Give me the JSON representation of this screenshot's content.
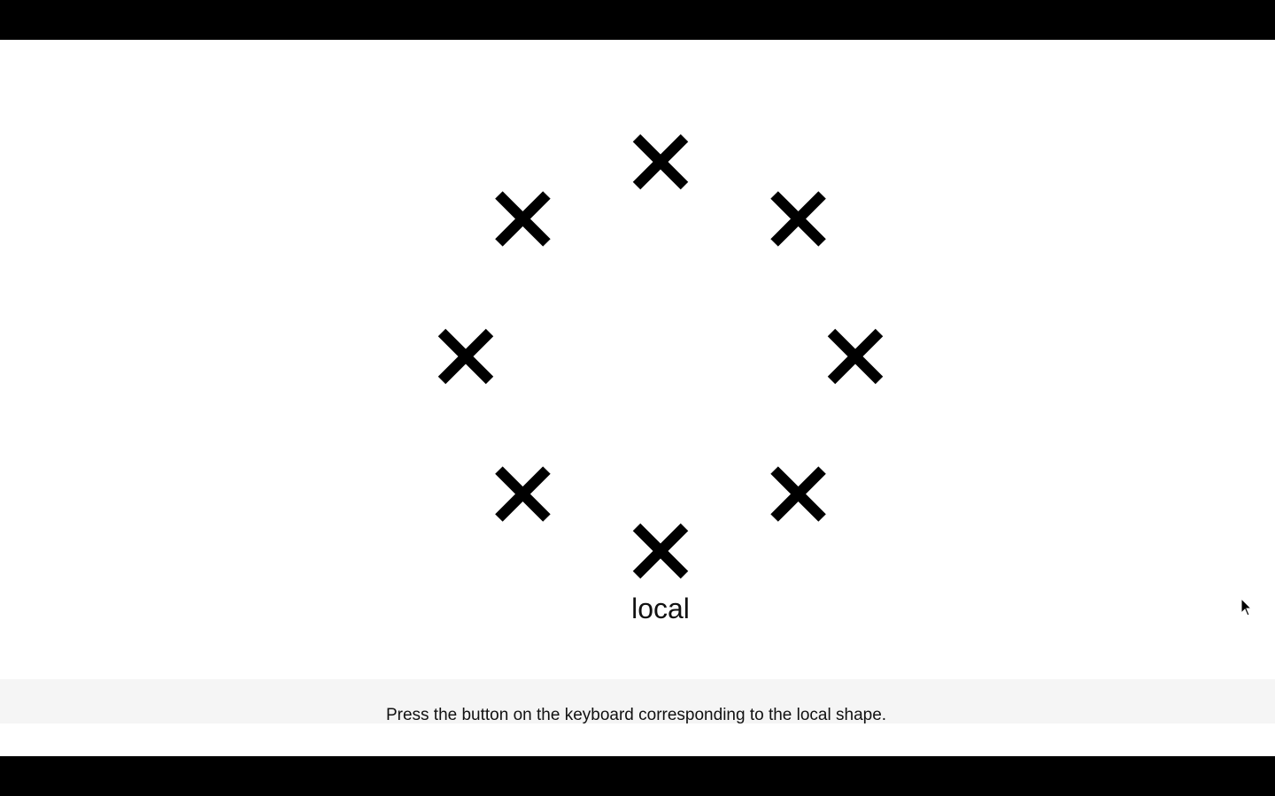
{
  "stimulus": {
    "shape_icon": "cross-x-icon",
    "shape_count": 8,
    "shape_color": "#000000",
    "cue_word": "local"
  },
  "instruction": {
    "text": "Press the button on the keyboard corresponding to the local shape."
  },
  "colors": {
    "background": "#ffffff",
    "letterbox": "#000000",
    "instruction_bar": "#f5f5f5",
    "text": "#111111"
  }
}
